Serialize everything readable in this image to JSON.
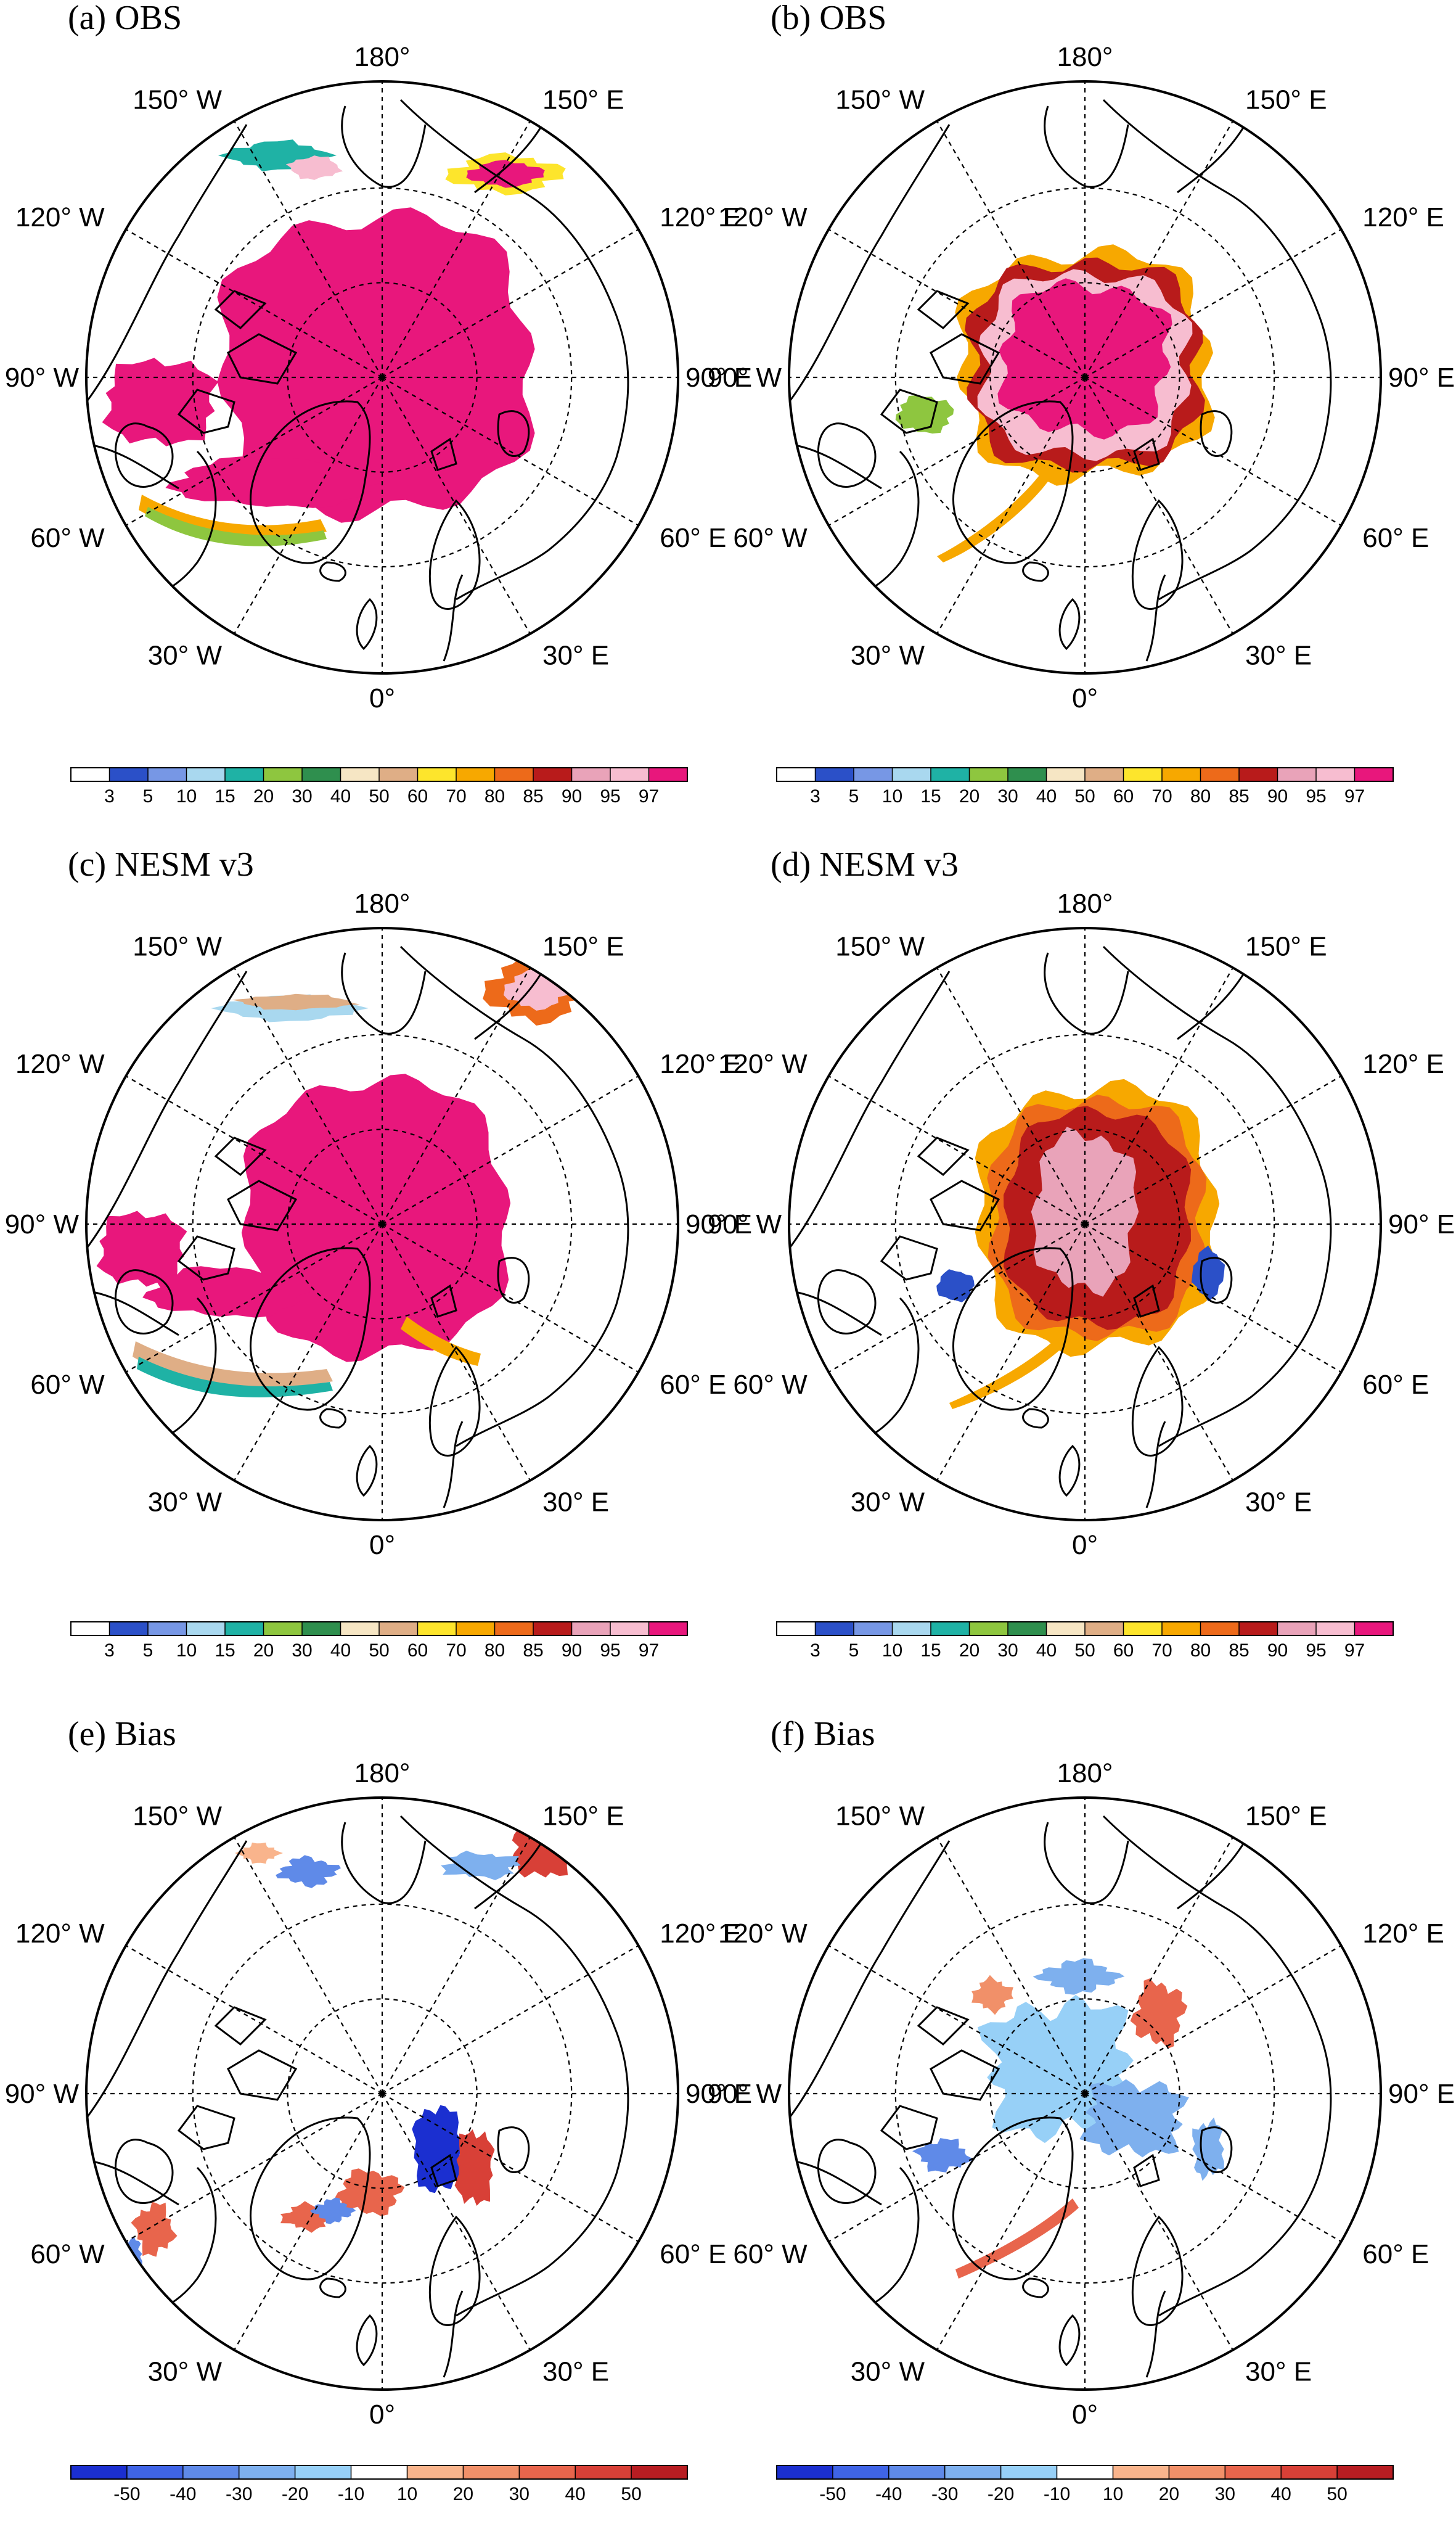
{
  "figure": {
    "panels": [
      {
        "id": "a",
        "title": "(a) OBS",
        "row": 0,
        "col": 0,
        "scheme": "conc",
        "ice": "obs_march"
      },
      {
        "id": "b",
        "title": "(b) OBS",
        "row": 0,
        "col": 1,
        "scheme": "conc",
        "ice": "obs_sept"
      },
      {
        "id": "c",
        "title": "(c) NESM v3",
        "row": 1,
        "col": 0,
        "scheme": "conc",
        "ice": "model_march"
      },
      {
        "id": "d",
        "title": "(d) NESM v3",
        "row": 1,
        "col": 1,
        "scheme": "conc",
        "ice": "model_sept"
      },
      {
        "id": "e",
        "title": "(e) Bias",
        "row": 2,
        "col": 0,
        "scheme": "bias",
        "ice": "bias_march"
      },
      {
        "id": "f",
        "title": "(f) Bias",
        "row": 2,
        "col": 1,
        "scheme": "bias",
        "ice": "bias_sept"
      }
    ],
    "longitude_labels": [
      "180°",
      "150° E",
      "120° E",
      "90° E",
      "60° E",
      "30° E",
      "0°",
      "30° W",
      "60° W",
      "90° W",
      "120° W",
      "150° W"
    ]
  },
  "chart_data": {
    "type": "heatmap",
    "projection": "north polar stereographic",
    "grid": true,
    "concentration_colorbar": {
      "levels": [
        "3",
        "5",
        "10",
        "15",
        "20",
        "30",
        "40",
        "50",
        "60",
        "70",
        "80",
        "85",
        "90",
        "95",
        "97"
      ],
      "colors": [
        "#ffffff",
        "#2b50c8",
        "#7797e5",
        "#a9d8ef",
        "#1fb2a5",
        "#8ec63f",
        "#2f8f4e",
        "#f6e6c4",
        "#dfae86",
        "#fde52c",
        "#f7a800",
        "#ed6a1a",
        "#b81b1b",
        "#e9a3b9",
        "#f7bdd0",
        "#e8177c"
      ]
    },
    "bias_colorbar": {
      "levels": [
        "-50",
        "-40",
        "-30",
        "-20",
        "-10",
        "10",
        "20",
        "30",
        "40",
        "50"
      ],
      "colors": [
        "#1b2fd0",
        "#3f64e6",
        "#5f8ae8",
        "#7eb0ee",
        "#97d0f7",
        "#ffffff",
        "#f9b48c",
        "#f19069",
        "#e8654c",
        "#d84037",
        "#b81d22"
      ]
    }
  }
}
